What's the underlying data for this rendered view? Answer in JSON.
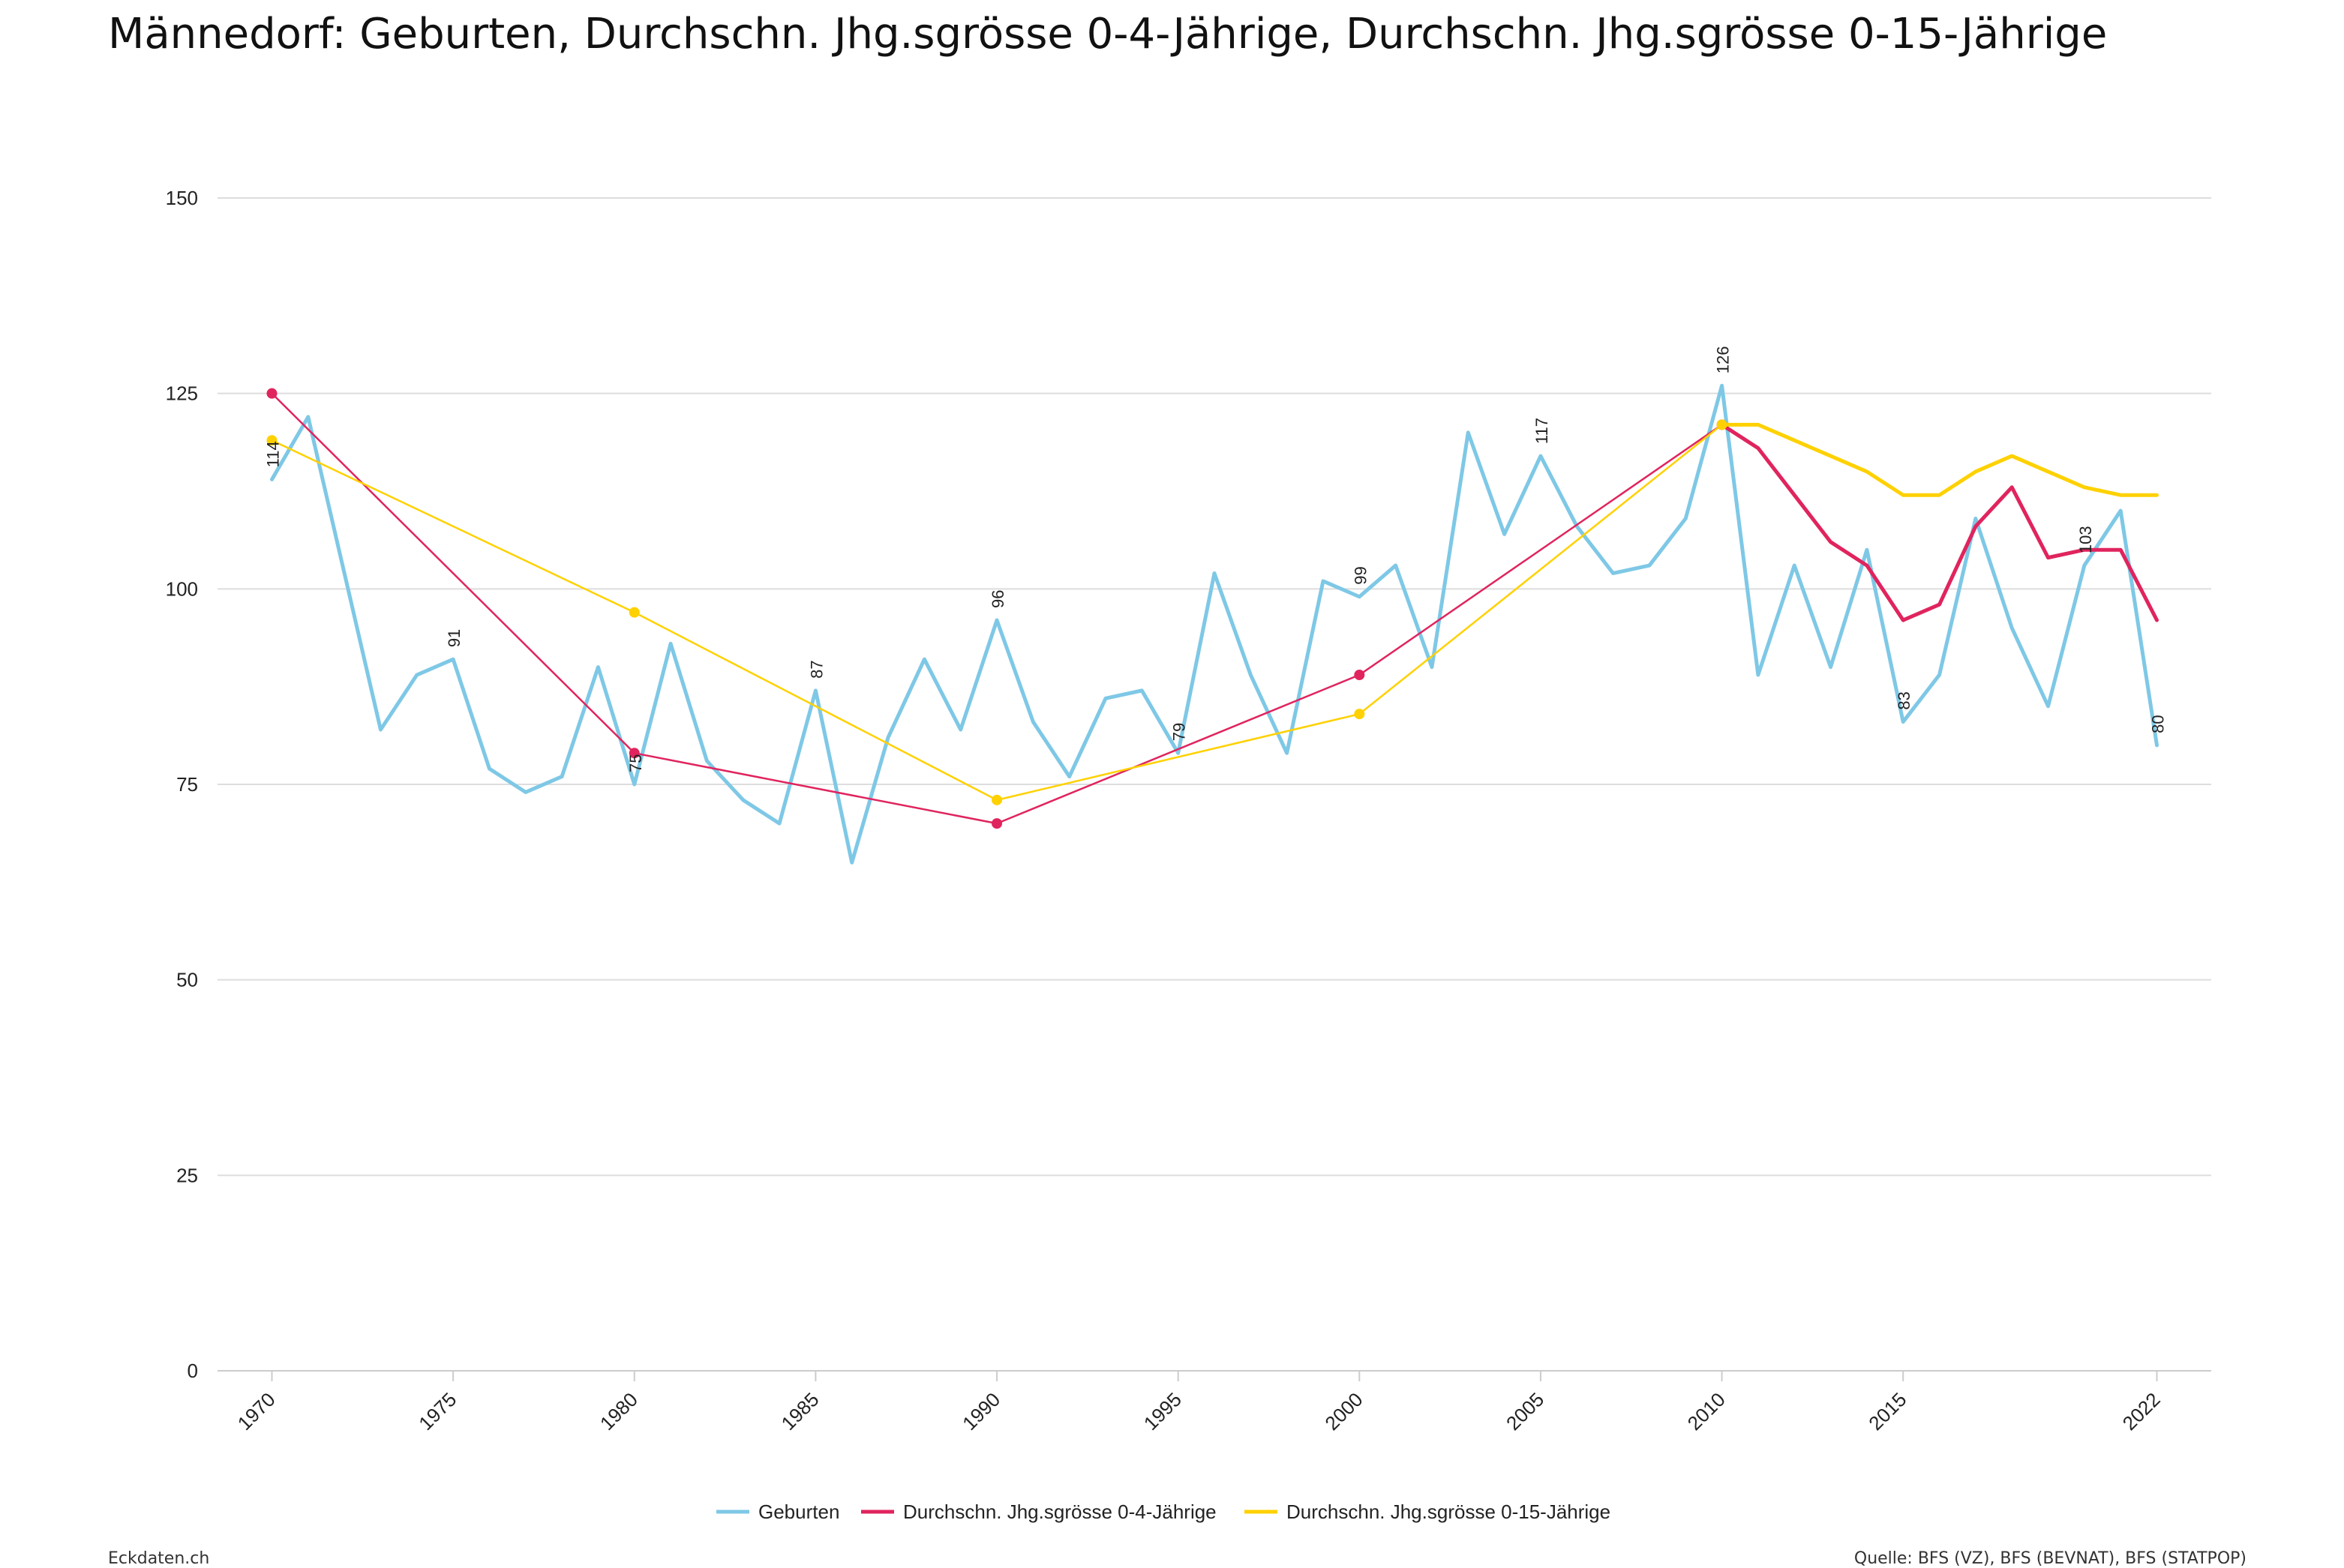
{
  "header": {
    "title": "Männedorf: Geburten, Durchschn. Jhg.sgrösse 0-4-Jährige, Durchschn. Jhg.sgrösse 0-15-Jährige"
  },
  "footer": {
    "left": "Eckdaten.ch",
    "right": "Quelle: BFS (VZ), BFS (BEVNAT), BFS (STATPOP)"
  },
  "chart_data": {
    "type": "line",
    "title": "Männedorf: Geburten, Durchschn. Jhg.sgrösse 0-4-Jährige, Durchschn. Jhg.sgrösse 0-15-Jährige",
    "xlabel": "",
    "ylabel": "",
    "xlim": [
      1968.5,
      2023.5
    ],
    "ylim": [
      0,
      150
    ],
    "x_ticks": [
      1970,
      1975,
      1980,
      1985,
      1990,
      1995,
      2000,
      2005,
      2010,
      2015,
      2022
    ],
    "y_ticks": [
      0,
      25,
      50,
      75,
      100,
      125,
      150
    ],
    "grid": true,
    "legend": "bottom-center",
    "series": [
      {
        "name": "Geburten",
        "color": "#7ec8e6",
        "points": [
          [
            1970,
            114
          ],
          [
            1971,
            122
          ],
          [
            1972,
            102
          ],
          [
            1973,
            82
          ],
          [
            1974,
            89
          ],
          [
            1975,
            91
          ],
          [
            1976,
            77
          ],
          [
            1977,
            74
          ],
          [
            1978,
            76
          ],
          [
            1979,
            90
          ],
          [
            1980,
            75
          ],
          [
            1981,
            93
          ],
          [
            1982,
            78
          ],
          [
            1983,
            73
          ],
          [
            1984,
            70
          ],
          [
            1985,
            87
          ],
          [
            1986,
            65
          ],
          [
            1987,
            81
          ],
          [
            1988,
            91
          ],
          [
            1989,
            82
          ],
          [
            1990,
            96
          ],
          [
            1991,
            83
          ],
          [
            1992,
            76
          ],
          [
            1993,
            86
          ],
          [
            1994,
            87
          ],
          [
            1995,
            79
          ],
          [
            1996,
            102
          ],
          [
            1997,
            89
          ],
          [
            1998,
            79
          ],
          [
            1999,
            101
          ],
          [
            2000,
            99
          ],
          [
            2001,
            103
          ],
          [
            2002,
            90
          ],
          [
            2003,
            120
          ],
          [
            2004,
            107
          ],
          [
            2005,
            117
          ],
          [
            2006,
            108
          ],
          [
            2007,
            102
          ],
          [
            2008,
            103
          ],
          [
            2009,
            109
          ],
          [
            2010,
            126
          ],
          [
            2011,
            89
          ],
          [
            2012,
            103
          ],
          [
            2013,
            90
          ],
          [
            2014,
            105
          ],
          [
            2015,
            83
          ],
          [
            2016,
            89
          ],
          [
            2017,
            109
          ],
          [
            2018,
            95
          ],
          [
            2019,
            85
          ],
          [
            2020,
            103
          ],
          [
            2021,
            110
          ],
          [
            2022,
            80
          ]
        ],
        "labels": [
          {
            "x": 1970,
            "text": "114"
          },
          {
            "x": 1975,
            "text": "91"
          },
          {
            "x": 1980,
            "text": "75"
          },
          {
            "x": 1985,
            "text": "87"
          },
          {
            "x": 1990,
            "text": "96"
          },
          {
            "x": 1995,
            "text": "79"
          },
          {
            "x": 2000,
            "text": "99"
          },
          {
            "x": 2005,
            "text": "117"
          },
          {
            "x": 2010,
            "text": "126"
          },
          {
            "x": 2015,
            "text": "83"
          },
          {
            "x": 2020,
            "text": "103"
          },
          {
            "x": 2022,
            "text": "80"
          }
        ]
      },
      {
        "name": "Durchschn. Jhg.sgrösse 0-4-Jährige",
        "color": "#e0245e",
        "points": [
          [
            1970,
            125
          ],
          [
            1980,
            79
          ],
          [
            1990,
            70
          ],
          [
            2000,
            89
          ],
          [
            2010,
            121
          ],
          [
            2011,
            118
          ],
          [
            2012,
            112
          ],
          [
            2013,
            106
          ],
          [
            2014,
            103
          ],
          [
            2015,
            96
          ],
          [
            2016,
            98
          ],
          [
            2017,
            108
          ],
          [
            2018,
            113
          ],
          [
            2019,
            104
          ],
          [
            2020,
            105
          ],
          [
            2021,
            105
          ],
          [
            2022,
            96
          ]
        ],
        "markers": [
          1970,
          1980,
          1990,
          2000,
          2010
        ]
      },
      {
        "name": "Durchschn. Jhg.sgrösse 0-15-Jährige",
        "color": "#ffd100",
        "points": [
          [
            1970,
            119
          ],
          [
            1980,
            97
          ],
          [
            1990,
            73
          ],
          [
            2000,
            84
          ],
          [
            2010,
            121
          ],
          [
            2011,
            121
          ],
          [
            2012,
            119
          ],
          [
            2013,
            117
          ],
          [
            2014,
            115
          ],
          [
            2015,
            112
          ],
          [
            2016,
            112
          ],
          [
            2017,
            115
          ],
          [
            2018,
            117
          ],
          [
            2019,
            115
          ],
          [
            2020,
            113
          ],
          [
            2021,
            112
          ],
          [
            2022,
            112
          ]
        ],
        "markers": [
          1970,
          1980,
          1990,
          2000,
          2010
        ]
      }
    ]
  }
}
